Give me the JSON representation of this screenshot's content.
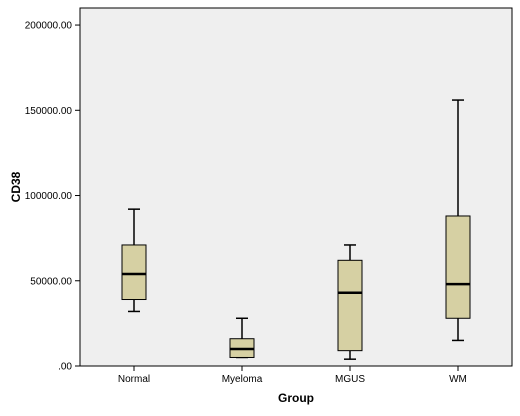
{
  "chart_data": {
    "type": "boxplot",
    "title": "",
    "xlabel": "Group",
    "ylabel": "CD38",
    "ylim": [
      0,
      210000
    ],
    "y_ticks": [
      0,
      50000,
      100000,
      150000,
      200000
    ],
    "y_tick_labels": [
      ".00",
      "50000.00",
      "100000.00",
      "150000.00",
      "200000.00"
    ],
    "categories": [
      "Normal",
      "Myeloma",
      "MGUS",
      "WM"
    ],
    "boxes": [
      {
        "category": "Normal",
        "min": 32000,
        "q1": 39000,
        "median": 54000,
        "q3": 71000,
        "max": 92000
      },
      {
        "category": "Myeloma",
        "min": 5000,
        "q1": 5000,
        "median": 10000,
        "q3": 16000,
        "max": 28000
      },
      {
        "category": "MGUS",
        "min": 4000,
        "q1": 9000,
        "median": 43000,
        "q3": 62000,
        "max": 71000
      },
      {
        "category": "WM",
        "min": 15000,
        "q1": 28000,
        "median": 48000,
        "q3": 88000,
        "max": 156000
      }
    ],
    "grid": false,
    "colors": {
      "plot_background": "#efefef",
      "box_fill": "#d6d0a3",
      "outline": "#000000"
    }
  }
}
